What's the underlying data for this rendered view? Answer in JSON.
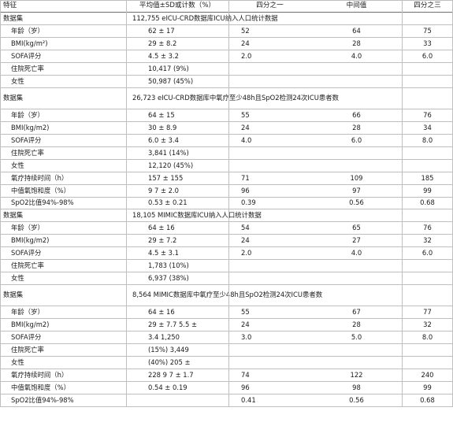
{
  "header": [
    "特征",
    "平均值±SD或计数（%）",
    "四分之一",
    "中间值",
    "四分之三"
  ],
  "rows": [
    {
      "kind": "section",
      "label": "数据集",
      "text": "112,755 eICU-CRD数据库ICU纳入人口统计数据"
    },
    {
      "kind": "data",
      "label": "年龄（岁）",
      "mean": "62 ± 17",
      "q1": "52",
      "median": "64",
      "q3": "75"
    },
    {
      "kind": "data",
      "label": "BMI(kg/m²)",
      "mean": "29 ± 8.2",
      "q1": "24",
      "median": "28",
      "q3": "33"
    },
    {
      "kind": "data",
      "label": "SOFA评分",
      "mean": "4.5 ± 3.2",
      "q1": "2.0",
      "median": "4.0",
      "q3": "6.0"
    },
    {
      "kind": "data",
      "label": "住院死亡率",
      "mean": "10,417 (9%)",
      "q1": "",
      "median": "",
      "q3": ""
    },
    {
      "kind": "data",
      "label": "女性",
      "mean": "50,987 (45%)",
      "q1": "",
      "median": "",
      "q3": ""
    },
    {
      "kind": "section",
      "label": "数据集",
      "text": "26,723 eICU-CRD数据库中氧疗至少48h且SpO2检测24次ICU患者数"
    },
    {
      "kind": "data",
      "label": "年龄（岁）",
      "mean": "64 ± 15",
      "q1": "55",
      "median": "66",
      "q3": "76"
    },
    {
      "kind": "data",
      "label": "BMI(kg/m2)",
      "mean": "30 ± 8.9",
      "q1": "24",
      "median": "28",
      "q3": "34"
    },
    {
      "kind": "data",
      "label": "SOFA评分",
      "mean": "6.0 ± 3.4",
      "q1": "4.0",
      "median": "6.0",
      "q3": "8.0"
    },
    {
      "kind": "data",
      "label": "住院死亡率",
      "mean": "3,841 (14%)",
      "q1": "",
      "median": "",
      "q3": ""
    },
    {
      "kind": "data",
      "label": "女性",
      "mean": "12,120 (45%)",
      "q1": "",
      "median": "",
      "q3": ""
    },
    {
      "kind": "data",
      "label": "氧疗持续时间（h）",
      "mean": "157 ± 155",
      "q1": "71",
      "median": "109",
      "q3": "185"
    },
    {
      "kind": "data",
      "label": "中值氧饱和度（%）",
      "mean": "9 7 ± 2.0",
      "q1": "96",
      "median": "97",
      "q3": "99"
    },
    {
      "kind": "data",
      "label": "SpO2比值94%-98%",
      "mean": "0.53 ± 0.21",
      "q1": "0.39",
      "median": "0.56",
      "q3": "0.68"
    },
    {
      "kind": "section",
      "label": "数据集",
      "text": "18,105 MIMIC数据库ICU纳入人口统计数据"
    },
    {
      "kind": "data",
      "label": "年龄（岁）",
      "mean": "64 ± 16",
      "q1": "54",
      "median": "65",
      "q3": "76"
    },
    {
      "kind": "data",
      "label": "BMI(kg/m2)",
      "mean": "29 ± 7.2",
      "q1": "24",
      "median": "27",
      "q3": "32"
    },
    {
      "kind": "data",
      "label": "SOFA评分",
      "mean": "4.5 ± 3.1",
      "q1": "2.0",
      "median": "4.0",
      "q3": "6.0"
    },
    {
      "kind": "data",
      "label": "住院死亡率",
      "mean": "1,783 (10%)",
      "q1": "",
      "median": "",
      "q3": ""
    },
    {
      "kind": "data",
      "label": "女性",
      "mean": "6,937 (38%)",
      "q1": "",
      "median": "",
      "q3": ""
    },
    {
      "kind": "section",
      "label": "数据集",
      "text": "8,564 MIMIC数据库中氧疗至少48h且SpO2检测24次ICU患者数"
    },
    {
      "kind": "data",
      "label": "年龄（岁）",
      "mean": "64 ± 16",
      "q1": "55",
      "median": "67",
      "q3": "77"
    },
    {
      "kind": "data",
      "label": "BMI(kg/m2)",
      "mean": "29 ± 7.7 5.5 ±",
      "q1": "24",
      "median": "28",
      "q3": "32"
    },
    {
      "kind": "data",
      "label": "SOFA评分",
      "mean": "3.4 1,250",
      "q1": "3.0",
      "median": "5.0",
      "q3": "8.0"
    },
    {
      "kind": "data",
      "label": "住院死亡率",
      "mean": "(15%) 3,449",
      "q1": "",
      "median": "",
      "q3": ""
    },
    {
      "kind": "data",
      "label": "女性",
      "mean": "(40%) 205 ±",
      "q1": "",
      "median": "",
      "q3": ""
    },
    {
      "kind": "data",
      "label": "氧疗持续时间（h）",
      "mean": "228 9 7 ± 1.7",
      "q1": "74",
      "median": "122",
      "q3": "240"
    },
    {
      "kind": "data",
      "label": "中值氧饱和度（%）",
      "mean": "0.54 ± 0.19",
      "q1": "96",
      "median": "98",
      "q3": "99"
    },
    {
      "kind": "data",
      "label": "SpO2比值94%-98%",
      "mean": "",
      "q1": "0.41",
      "median": "0.56",
      "q3": "0.68"
    }
  ],
  "colors": {
    "border": "#bfbfbf",
    "border_dark": "#6f6f6f",
    "text": "#1a1a1a",
    "background": "#ffffff"
  }
}
